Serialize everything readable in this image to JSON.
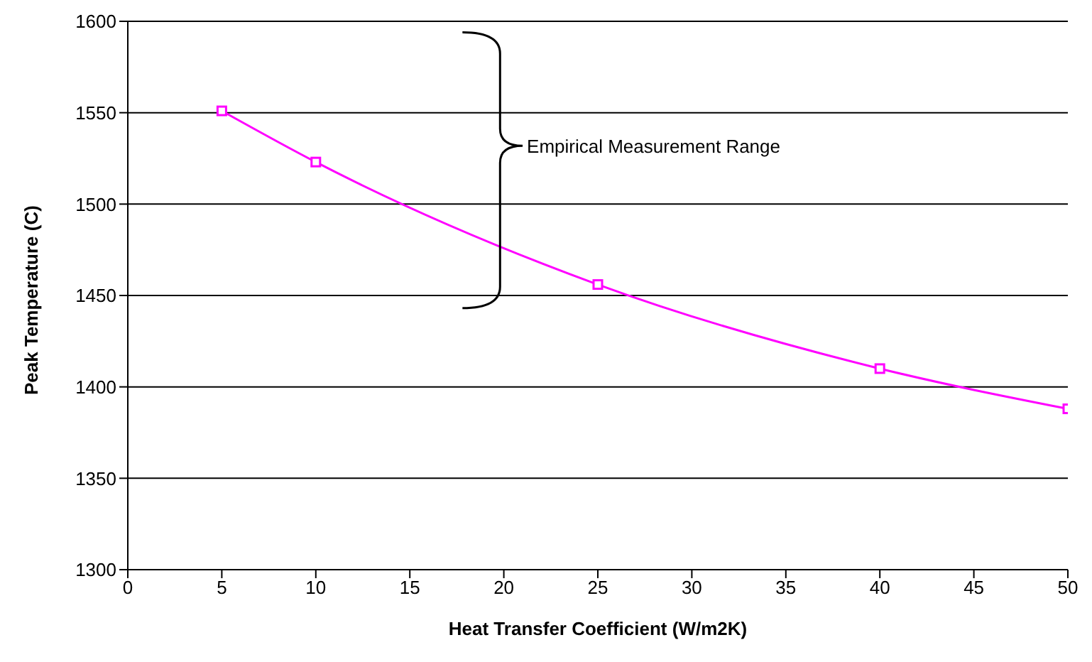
{
  "chart_data": {
    "type": "line",
    "xlabel": "Heat Transfer Coefficient (W/m2K)",
    "ylabel": "Peak Temperature (C)",
    "x": [
      5,
      10,
      25,
      40,
      50
    ],
    "series": [
      {
        "color": "#ff00ff",
        "values": [
          1551,
          1523,
          1456,
          1410,
          1388
        ]
      }
    ],
    "xlim": [
      0,
      50
    ],
    "xticks": [
      0,
      5,
      10,
      15,
      20,
      25,
      30,
      35,
      40,
      45,
      50
    ],
    "ylim": [
      1300,
      1600
    ],
    "yticks": [
      1300,
      1350,
      1400,
      1450,
      1500,
      1550,
      1600
    ],
    "grid": "y",
    "marker": "square",
    "line_style": "solid",
    "annotations": [
      "Empirical Measurement Range"
    ]
  }
}
